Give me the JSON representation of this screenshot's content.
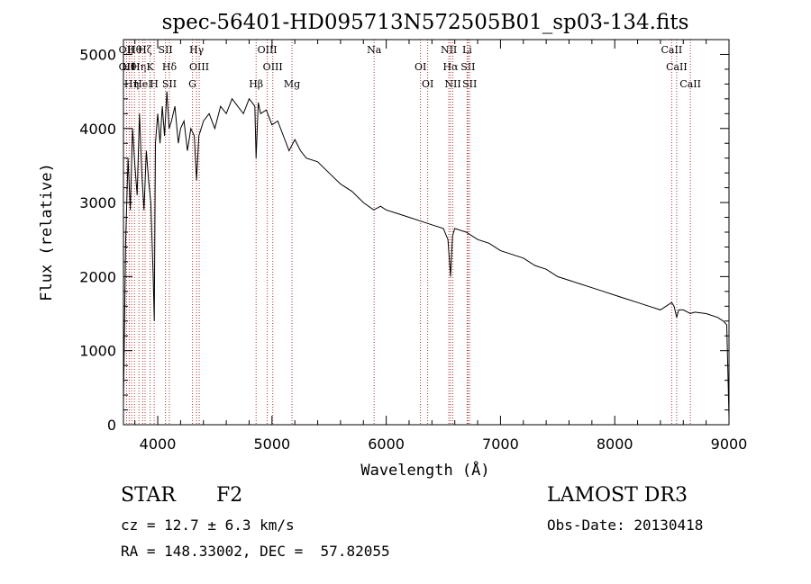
{
  "chart_data": {
    "type": "line",
    "title": "spec-56401-HD095713N572505B01_sp03-134.fits",
    "xlabel": "Wavelength (Å)",
    "ylabel": "Flux (relative)",
    "xlim": [
      3700,
      9000
    ],
    "ylim": [
      0,
      5200
    ],
    "x_ticks": [
      4000,
      5000,
      6000,
      7000,
      8000,
      9000
    ],
    "y_ticks": [
      0,
      1000,
      2000,
      3000,
      4000,
      5000
    ],
    "series": [
      {
        "name": "flux",
        "x": [
          3700,
          3720,
          3740,
          3760,
          3780,
          3800,
          3820,
          3840,
          3860,
          3880,
          3900,
          3920,
          3940,
          3960,
          3970,
          3980,
          4000,
          4020,
          4040,
          4060,
          4080,
          4100,
          4120,
          4150,
          4180,
          4200,
          4230,
          4260,
          4290,
          4320,
          4340,
          4360,
          4400,
          4450,
          4500,
          4550,
          4600,
          4650,
          4700,
          4750,
          4800,
          4850,
          4861,
          4880,
          4900,
          4950,
          5000,
          5050,
          5100,
          5150,
          5200,
          5250,
          5300,
          5400,
          5500,
          5600,
          5700,
          5800,
          5890,
          5950,
          6000,
          6100,
          6200,
          6300,
          6400,
          6500,
          6540,
          6563,
          6580,
          6600,
          6700,
          6800,
          6900,
          7000,
          7100,
          7200,
          7300,
          7400,
          7500,
          7600,
          7700,
          7800,
          7900,
          8000,
          8100,
          8200,
          8300,
          8400,
          8498,
          8520,
          8542,
          8560,
          8600,
          8662,
          8700,
          8800,
          8900,
          8950,
          8980,
          9000
        ],
        "y": [
          300,
          2500,
          3600,
          2900,
          4000,
          3500,
          3100,
          4200,
          3400,
          2900,
          3700,
          3300,
          3000,
          2000,
          1400,
          3800,
          4200,
          3800,
          4300,
          3900,
          4500,
          4000,
          4100,
          4300,
          3800,
          4000,
          4100,
          3700,
          4000,
          3900,
          3300,
          3900,
          4100,
          4200,
          4000,
          4300,
          4200,
          4400,
          4300,
          4200,
          4400,
          4300,
          3600,
          4350,
          4200,
          4250,
          4050,
          4100,
          3900,
          3700,
          3850,
          3700,
          3600,
          3550,
          3400,
          3250,
          3150,
          3000,
          2900,
          2950,
          2900,
          2850,
          2800,
          2750,
          2700,
          2650,
          2500,
          2000,
          2550,
          2650,
          2600,
          2500,
          2450,
          2350,
          2300,
          2250,
          2150,
          2100,
          2000,
          1950,
          1900,
          1850,
          1800,
          1750,
          1700,
          1650,
          1600,
          1550,
          1650,
          1600,
          1450,
          1550,
          1550,
          1500,
          1520,
          1500,
          1450,
          1400,
          1350,
          100
        ]
      }
    ],
    "line_markers": [
      {
        "x": 3727,
        "labels": [
          "OII",
          "OII"
        ]
      },
      {
        "x": 3750,
        "labels": [
          "Hθ"
        ]
      },
      {
        "x": 3771,
        "labels": [
          "Hη"
        ]
      },
      {
        "x": 3797,
        "labels": [
          "Hθ"
        ]
      },
      {
        "x": 3835,
        "labels": [
          "Hη"
        ]
      },
      {
        "x": 3869,
        "labels": [
          "HeI"
        ]
      },
      {
        "x": 3889,
        "labels": [
          "Hζ"
        ]
      },
      {
        "x": 3934,
        "labels": [
          "K"
        ]
      },
      {
        "x": 3969,
        "labels": [
          "H"
        ]
      },
      {
        "x": 4068,
        "labels": [
          "SII"
        ]
      },
      {
        "x": 4102,
        "labels": [
          "Hδ",
          "SII"
        ]
      },
      {
        "x": 4304,
        "labels": [
          "G"
        ]
      },
      {
        "x": 4340,
        "labels": [
          "Hγ"
        ]
      },
      {
        "x": 4363,
        "labels": [
          "OIII"
        ]
      },
      {
        "x": 4861,
        "labels": [
          "Hβ"
        ]
      },
      {
        "x": 4959,
        "labels": [
          "OIII"
        ]
      },
      {
        "x": 5007,
        "labels": [
          "OIII"
        ]
      },
      {
        "x": 5175,
        "labels": [
          "Mg"
        ]
      },
      {
        "x": 5894,
        "labels": [
          "Na"
        ]
      },
      {
        "x": 6300,
        "labels": [
          "OI"
        ]
      },
      {
        "x": 6363,
        "labels": [
          "OI"
        ]
      },
      {
        "x": 6548,
        "labels": [
          "NII"
        ]
      },
      {
        "x": 6563,
        "labels": [
          "Hα"
        ]
      },
      {
        "x": 6583,
        "labels": [
          "NII"
        ]
      },
      {
        "x": 6708,
        "labels": [
          "Li"
        ]
      },
      {
        "x": 6716,
        "labels": [
          "SII"
        ]
      },
      {
        "x": 6730,
        "labels": [
          "SII"
        ]
      },
      {
        "x": 8498,
        "labels": [
          "CaII"
        ]
      },
      {
        "x": 8542,
        "labels": [
          "CaII"
        ]
      },
      {
        "x": 8662,
        "labels": [
          "CaII"
        ]
      }
    ]
  },
  "info": {
    "object_class": "STAR",
    "spectral_type": "F2",
    "redshift_line": "cz = 12.7 ± 6.3 km/s",
    "coords_line": "RA = 148.33002, DEC =  57.82055",
    "survey": "LAMOST DR3",
    "obs_date": "Obs-Date: 20130418"
  }
}
